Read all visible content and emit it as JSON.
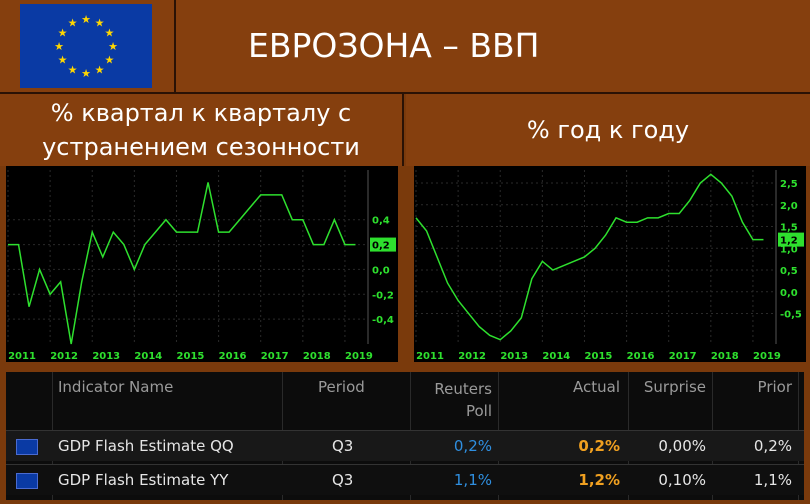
{
  "header": {
    "title": "ЕВРОЗОНА – ВВП"
  },
  "subtitles": {
    "left": "% квартал к кварталу с устранением сезонности",
    "right": "% год к году"
  },
  "colors": {
    "line": "#2ee02e",
    "poll": "#2f8fe0",
    "actual": "#f0a020",
    "flag_blue": "#0a3aa4",
    "flag_star": "#ffd700"
  },
  "chart_data": [
    {
      "type": "line",
      "title": "",
      "x_ticks": [
        "2011",
        "2012",
        "2013",
        "2014",
        "2015",
        "2016",
        "2017",
        "2018",
        "2019"
      ],
      "y_ticks": [
        "0,4",
        "0,2",
        "0,0",
        "-0,2",
        "-0,4"
      ],
      "ylim": [
        -0.6,
        0.8
      ],
      "last_value_label": "0,2",
      "series": [
        {
          "x": [
            2011.0,
            2011.25,
            2011.5,
            2011.75,
            2012.0,
            2012.25,
            2012.5,
            2012.75,
            2013.0,
            2013.25,
            2013.5,
            2013.75,
            2014.0,
            2014.25,
            2014.5,
            2014.75,
            2015.0,
            2015.25,
            2015.5,
            2015.75,
            2016.0,
            2016.25,
            2016.5,
            2016.75,
            2017.0,
            2017.25,
            2017.5,
            2017.75,
            2018.0,
            2018.25,
            2018.5,
            2018.75,
            2019.0,
            2019.25
          ],
          "y": [
            0.2,
            0.2,
            -0.3,
            0.0,
            -0.2,
            -0.1,
            -0.6,
            -0.1,
            0.3,
            0.1,
            0.3,
            0.2,
            0.0,
            0.2,
            0.3,
            0.4,
            0.3,
            0.3,
            0.3,
            0.7,
            0.3,
            0.3,
            0.4,
            0.5,
            0.6,
            0.6,
            0.6,
            0.4,
            0.4,
            0.2,
            0.2,
            0.4,
            0.2,
            0.2
          ]
        }
      ]
    },
    {
      "type": "line",
      "title": "",
      "x_ticks": [
        "2011",
        "2012",
        "2013",
        "2014",
        "2015",
        "2016",
        "2017",
        "2018",
        "2019"
      ],
      "y_ticks": [
        "2,5",
        "2,0",
        "1,5",
        "1,0",
        "0,5",
        "0,0",
        "-0,5"
      ],
      "ylim": [
        -1.2,
        2.8
      ],
      "last_value_label": "1,2",
      "series": [
        {
          "x": [
            2011.0,
            2011.25,
            2011.5,
            2011.75,
            2012.0,
            2012.25,
            2012.5,
            2012.75,
            2013.0,
            2013.25,
            2013.5,
            2013.75,
            2014.0,
            2014.25,
            2014.5,
            2014.75,
            2015.0,
            2015.25,
            2015.5,
            2015.75,
            2016.0,
            2016.25,
            2016.5,
            2016.75,
            2017.0,
            2017.25,
            2017.5,
            2017.75,
            2018.0,
            2018.25,
            2018.5,
            2018.75,
            2019.0,
            2019.25
          ],
          "y": [
            1.7,
            1.4,
            0.8,
            0.2,
            -0.2,
            -0.5,
            -0.8,
            -1.0,
            -1.1,
            -0.9,
            -0.6,
            0.3,
            0.7,
            0.5,
            0.6,
            0.7,
            0.8,
            1.0,
            1.3,
            1.7,
            1.6,
            1.6,
            1.7,
            1.7,
            1.8,
            1.8,
            2.1,
            2.5,
            2.7,
            2.5,
            2.2,
            1.6,
            1.2,
            1.2
          ]
        }
      ]
    }
  ],
  "table": {
    "headers": [
      "Indicator Name",
      "Period",
      "Reuters Poll",
      "Actual",
      "Surprise",
      "Prior"
    ],
    "rows": [
      {
        "flag": "eu-flag-icon",
        "name": "GDP Flash Estimate QQ",
        "period": "Q3",
        "poll": "0,2%",
        "actual": "0,2%",
        "surprise": "0,00%",
        "prior": "0,2%"
      },
      {
        "flag": "eu-flag-icon",
        "name": "GDP Flash Estimate YY",
        "period": "Q3",
        "poll": "1,1%",
        "actual": "1,2%",
        "surprise": "0,10%",
        "prior": "1,1%"
      }
    ]
  }
}
